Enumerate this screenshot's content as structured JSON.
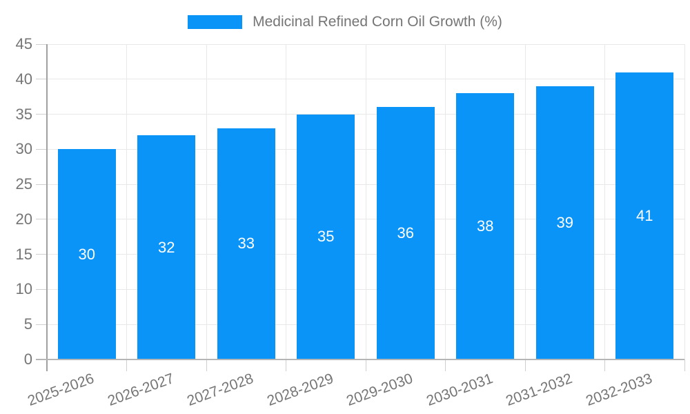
{
  "legend": {
    "label": "Medicinal Refined Corn Oil Growth (%)"
  },
  "chart_data": {
    "type": "bar",
    "title": "Medicinal Refined Corn Oil Growth (%)",
    "categories": [
      "2025-2026",
      "2026-2027",
      "2027-2028",
      "2028-2029",
      "2029-2030",
      "2030-2031",
      "2031-2032",
      "2032-2033"
    ],
    "series": [
      {
        "name": "Medicinal Refined Corn Oil Growth (%)",
        "values": [
          30,
          32,
          33,
          35,
          36,
          38,
          39,
          41
        ]
      }
    ],
    "value_labels": [
      "30",
      "32",
      "33",
      "35",
      "36",
      "38",
      "39",
      "41"
    ],
    "xlabel": "",
    "ylabel": "",
    "ylim": [
      0,
      45
    ],
    "yticks": [
      0,
      5,
      10,
      15,
      20,
      25,
      30,
      35,
      40,
      45
    ],
    "grid": true,
    "legend_position": "top",
    "bar_color": "#0a94f8",
    "value_label_color": "#ffffff",
    "axis_label_color": "#757575",
    "x_label_rotation_deg": -20
  }
}
